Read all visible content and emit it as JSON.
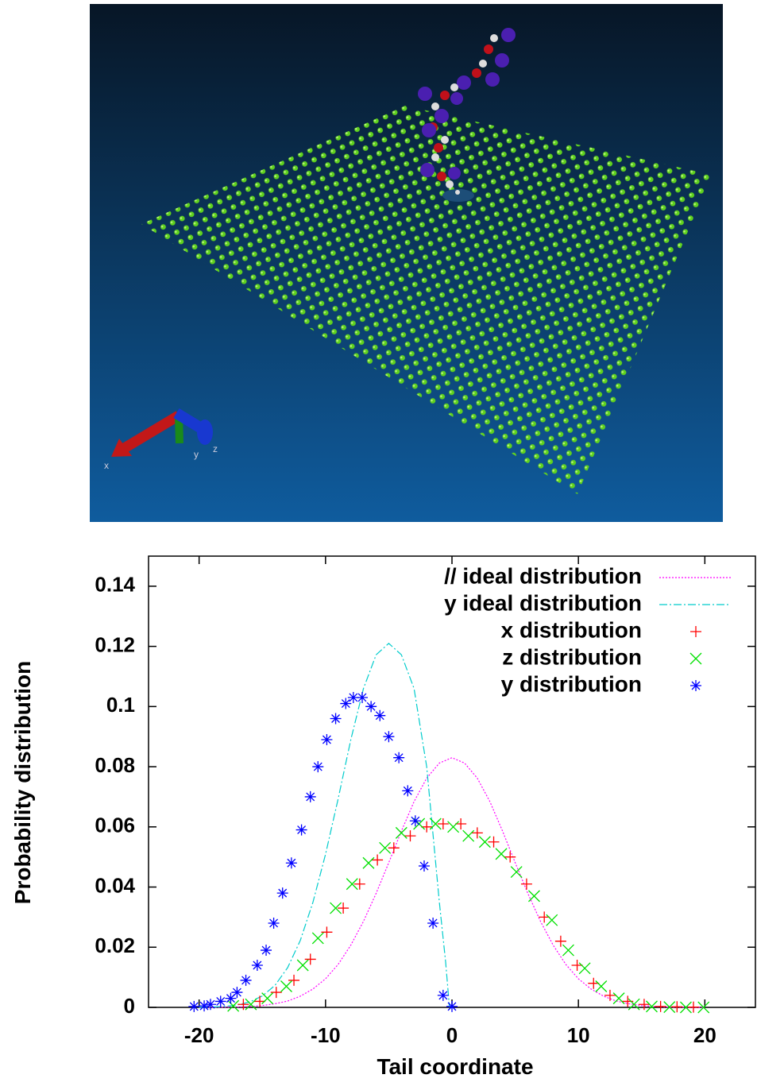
{
  "render": {
    "axis_labels": [
      "x",
      "y",
      "z"
    ]
  },
  "chart_data": {
    "type": "scatter",
    "xlabel": "Tail coordinate",
    "ylabel": "Probability distribution",
    "xlim": [
      -24,
      24
    ],
    "ylim": [
      0,
      0.15
    ],
    "xticks": [
      -20,
      -10,
      0,
      10,
      20
    ],
    "yticks": [
      0,
      0.02,
      0.04,
      0.06,
      0.08,
      0.1,
      0.12,
      0.14
    ],
    "grid": false,
    "legend": "top right",
    "series": [
      {
        "name": "// ideal distribution",
        "color": "#ff00ff",
        "style": "dotted-line",
        "x": [
          -20,
          -19,
          -18,
          -17,
          -16,
          -15,
          -14,
          -13,
          -12,
          -11,
          -10,
          -9,
          -8,
          -7,
          -6,
          -5,
          -4,
          -3,
          -2,
          -1,
          0,
          1,
          2,
          3,
          4,
          5,
          6,
          7,
          8,
          9,
          10,
          11,
          12,
          13,
          14,
          15,
          16,
          17,
          18,
          19,
          20
        ],
        "values": [
          0,
          0,
          0.0001,
          0.0001,
          0.0003,
          0.0006,
          0.0012,
          0.0021,
          0.0037,
          0.0061,
          0.0095,
          0.0143,
          0.0207,
          0.0286,
          0.0379,
          0.0481,
          0.0586,
          0.0684,
          0.0762,
          0.0812,
          0.083,
          0.0812,
          0.0762,
          0.0684,
          0.0586,
          0.0481,
          0.0379,
          0.0286,
          0.0207,
          0.0143,
          0.0095,
          0.0061,
          0.0037,
          0.0021,
          0.0012,
          0.0006,
          0.0003,
          0.0001,
          0.0001,
          0,
          0
        ]
      },
      {
        "name": "y ideal distribution",
        "color": "#00cccc",
        "style": "dashdot-line",
        "x": [
          -20,
          -19,
          -18,
          -17,
          -16,
          -15,
          -14,
          -13,
          -12,
          -11,
          -10,
          -9,
          -8,
          -7,
          -6,
          -5,
          -4,
          -3,
          -2,
          -1,
          -0.5,
          -0.2
        ],
        "values": [
          0,
          0.0001,
          0.0003,
          0.0008,
          0.0018,
          0.0038,
          0.0073,
          0.0132,
          0.0222,
          0.0349,
          0.0509,
          0.0694,
          0.089,
          0.106,
          0.1172,
          0.121,
          0.1172,
          0.106,
          0.08,
          0.035,
          0.015,
          0
        ]
      },
      {
        "name": "x distribution",
        "color": "#ff0000",
        "style": "points",
        "marker": "plus",
        "x": [
          -16.5,
          -15.2,
          -13.9,
          -12.5,
          -11.2,
          -9.9,
          -8.6,
          -7.3,
          -5.9,
          -4.6,
          -3.3,
          -2.0,
          -0.7,
          0.7,
          2.0,
          3.3,
          4.6,
          5.9,
          7.3,
          8.6,
          9.9,
          11.2,
          12.5,
          13.9,
          15.2,
          16.5,
          17.8,
          19.1
        ],
        "values": [
          0.001,
          0.002,
          0.005,
          0.009,
          0.016,
          0.025,
          0.033,
          0.041,
          0.049,
          0.053,
          0.057,
          0.06,
          0.061,
          0.061,
          0.058,
          0.055,
          0.05,
          0.041,
          0.03,
          0.022,
          0.014,
          0.008,
          0.004,
          0.002,
          0.001,
          0.0003,
          0.0002,
          0.0001
        ]
      },
      {
        "name": "z distribution",
        "color": "#00e000",
        "style": "points",
        "marker": "cross",
        "x": [
          -17.3,
          -15.9,
          -14.6,
          -13.1,
          -11.8,
          -10.6,
          -9.2,
          -7.9,
          -6.6,
          -5.3,
          -4.0,
          -2.6,
          -1.3,
          0.1,
          1.3,
          2.6,
          3.9,
          5.1,
          6.5,
          7.9,
          9.2,
          10.5,
          11.8,
          13.2,
          14.4,
          15.8,
          17.2,
          18.5,
          19.9
        ],
        "values": [
          0.0005,
          0.001,
          0.003,
          0.007,
          0.014,
          0.023,
          0.033,
          0.041,
          0.048,
          0.053,
          0.058,
          0.061,
          0.061,
          0.06,
          0.057,
          0.055,
          0.051,
          0.045,
          0.037,
          0.029,
          0.019,
          0.013,
          0.007,
          0.003,
          0.001,
          0.0003,
          0.0001,
          0,
          0
        ]
      },
      {
        "name": "y distribution",
        "color": "#0000ff",
        "style": "points",
        "marker": "star",
        "x": [
          -20.4,
          -19.6,
          -19.1,
          -18.3,
          -17.5,
          -17.0,
          -16.3,
          -15.4,
          -14.7,
          -14.1,
          -13.4,
          -12.7,
          -11.9,
          -11.2,
          -10.6,
          -9.9,
          -9.2,
          -8.4,
          -7.8,
          -7.1,
          -6.4,
          -5.7,
          -5.0,
          -4.2,
          -3.5,
          -2.9,
          -2.2,
          -1.5,
          -0.7,
          0
        ],
        "values": [
          0.0003,
          0.0005,
          0.001,
          0.002,
          0.003,
          0.005,
          0.009,
          0.014,
          0.019,
          0.028,
          0.038,
          0.048,
          0.059,
          0.07,
          0.08,
          0.089,
          0.096,
          0.101,
          0.103,
          0.103,
          0.1,
          0.097,
          0.09,
          0.083,
          0.072,
          0.062,
          0.047,
          0.028,
          0.004,
          0.0003
        ]
      }
    ]
  }
}
